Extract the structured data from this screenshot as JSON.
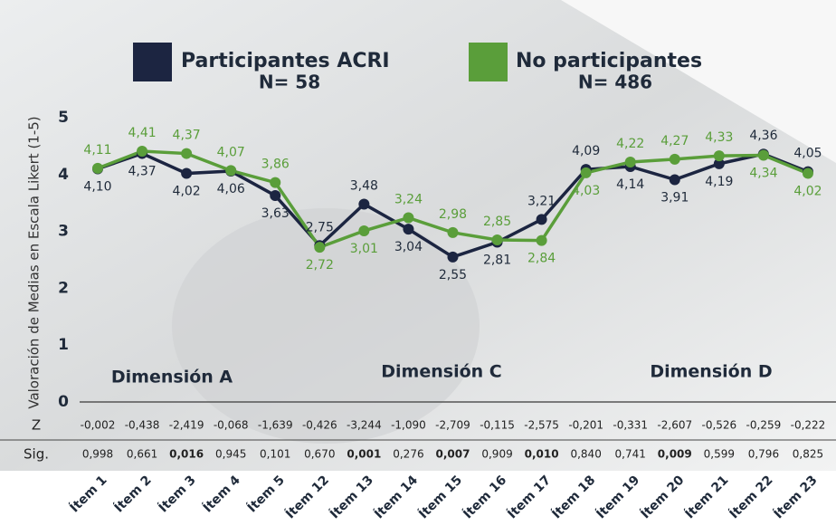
{
  "chart_data": {
    "type": "line",
    "y_label": "Valoración de Medias en Escala Likert (1-5)",
    "categories": [
      "Ítem 1",
      "Ítem 2",
      "Ítem 3",
      "Ítem 4",
      "Ítem 5",
      "Ítem 12",
      "Ítem 13",
      "Ítem 14",
      "Ítem 15",
      "Ítem 16",
      "Ítem 17",
      "Ítem 18",
      "Ítem 19",
      "Ítem 20",
      "Ítem 21",
      "Ítem 22",
      "Ítem 23"
    ],
    "series": [
      {
        "name": "Participantes ACRI",
        "n": "N= 58",
        "color": "#1c2541",
        "values": [
          4.1,
          4.37,
          4.02,
          4.06,
          3.63,
          2.75,
          3.48,
          3.04,
          2.55,
          2.81,
          3.21,
          4.09,
          4.14,
          3.91,
          4.19,
          4.36,
          4.05
        ],
        "value_labels": [
          "4,10",
          "4,37",
          "4,02",
          "4,06",
          "3,63",
          "2,75",
          "3,48",
          "3,04",
          "2,55",
          "2,81",
          "3,21",
          "4,09",
          "4,14",
          "3,91",
          "4,19",
          "4,36",
          "4,05"
        ]
      },
      {
        "name": "No participantes",
        "n": "N= 486",
        "color": "#5a9e3a",
        "values": [
          4.11,
          4.41,
          4.37,
          4.07,
          3.86,
          2.72,
          3.01,
          3.24,
          2.98,
          2.85,
          2.84,
          4.03,
          4.22,
          4.27,
          4.33,
          4.34,
          4.02
        ],
        "value_labels": [
          "4,11",
          "4,41",
          "4,37",
          "4,07",
          "3,86",
          "2,72",
          "3,01",
          "3,24",
          "2,98",
          "2,85",
          "2,84",
          "4,03",
          "4,22",
          "4,27",
          "4,33",
          "4,34",
          "4,02"
        ]
      }
    ],
    "ylim": [
      0,
      5
    ],
    "yticks": [
      0,
      1,
      2,
      3,
      4,
      5
    ],
    "annotations": [
      "Dimensión A",
      "Dimensión C",
      "Dimensión D"
    ],
    "z_row": {
      "label": "Z",
      "values": [
        "-0,002",
        "-0,438",
        "-2,419",
        "-0,068",
        "-1,639",
        "-0,426",
        "-3,244",
        "-1,090",
        "-2,709",
        "-0,115",
        "-2,575",
        "-0,201",
        "-0,331",
        "-2,607",
        "-0,526",
        "-0,259",
        "-0,222"
      ]
    },
    "sig_row": {
      "label": "Sig.",
      "values": [
        "0,998",
        "0,661",
        "0,016",
        "0,945",
        "0,101",
        "0,670",
        "0,001",
        "0,276",
        "0,007",
        "0,909",
        "0,010",
        "0,840",
        "0,741",
        "0,009",
        "0,599",
        "0,796",
        "0,825"
      ],
      "significant": [
        false,
        false,
        true,
        false,
        false,
        false,
        true,
        false,
        true,
        false,
        true,
        false,
        false,
        true,
        false,
        false,
        false
      ]
    }
  }
}
